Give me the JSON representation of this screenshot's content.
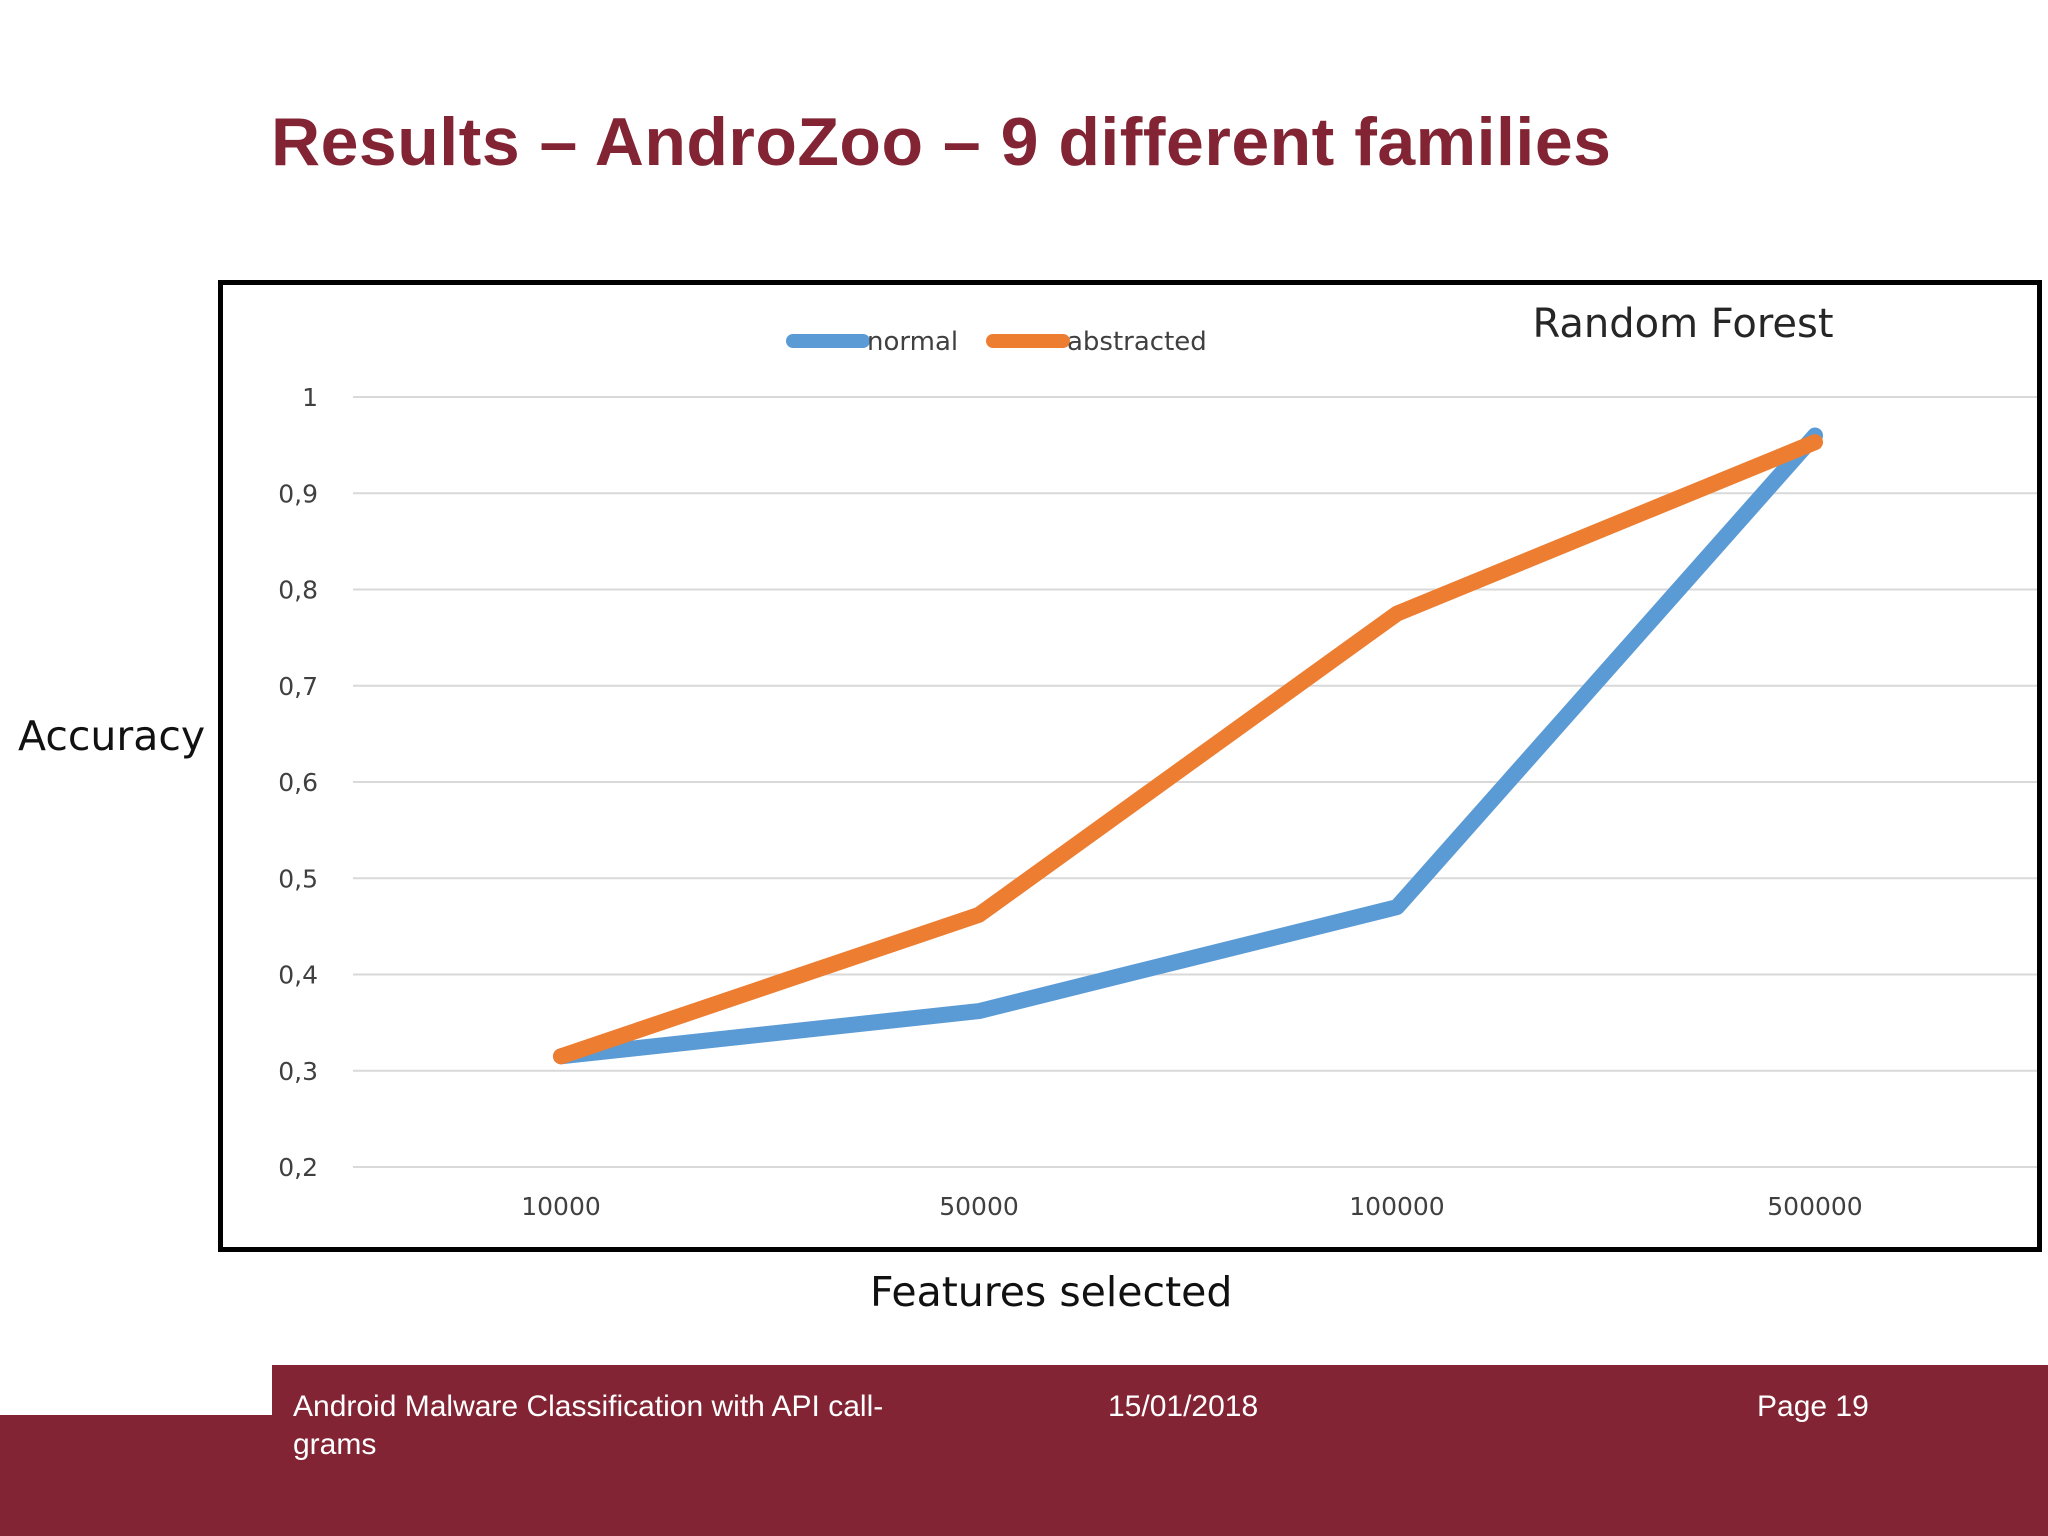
{
  "slide": {
    "title": "Results – AndroZoo – 9 different families"
  },
  "axis_titles": {
    "y": "Accuracy",
    "x": "Features selected"
  },
  "chart_data": {
    "type": "line",
    "title": "Random Forest",
    "categories": [
      "10000",
      "50000",
      "100000",
      "500000"
    ],
    "series": [
      {
        "name": "normal",
        "values": [
          0.315,
          0.362,
          0.47,
          0.96
        ],
        "color": "#5b9bd5"
      },
      {
        "name": "abstracted",
        "values": [
          0.315,
          0.462,
          0.775,
          0.953
        ],
        "color": "#ed7d31"
      }
    ],
    "y_ticks": [
      "0,2",
      "0,3",
      "0,4",
      "0,5",
      "0,6",
      "0,7",
      "0,8",
      "0,9",
      "1"
    ],
    "ylim": [
      0.2,
      1.0
    ],
    "grid": true,
    "legend_position": "top-center",
    "xlabel": "Features selected",
    "ylabel": "Accuracy"
  },
  "footer": {
    "presentation_title": "Android Malware Classification with API call-grams",
    "date": "15/01/2018",
    "page": "Page 19"
  },
  "colors": {
    "brand": "#822434",
    "grid": "#d9d9d9",
    "tick_text": "#404040"
  }
}
